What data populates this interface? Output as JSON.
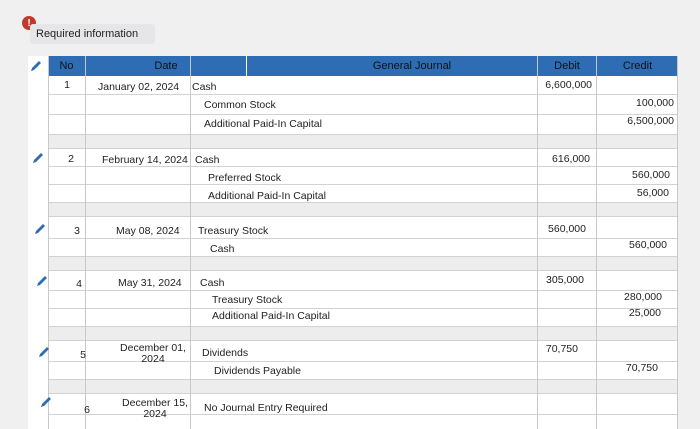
{
  "header": {
    "alert_icon": "!",
    "title": "Required information"
  },
  "columns": {
    "no": "No",
    "date": "Date",
    "journal": "General Journal",
    "debit": "Debit",
    "credit": "Credit"
  },
  "entries": [
    {
      "no": "1",
      "date": "January 02, 2024",
      "lines": [
        {
          "account": "Cash",
          "debit": "6,600,000",
          "credit": ""
        },
        {
          "account": "Common Stock",
          "debit": "",
          "credit": "100,000"
        },
        {
          "account": "Additional Paid-In Capital",
          "debit": "",
          "credit": "6,500,000"
        }
      ]
    },
    {
      "no": "2",
      "date": "February 14, 2024",
      "lines": [
        {
          "account": "Cash",
          "debit": "616,000",
          "credit": ""
        },
        {
          "account": "Preferred Stock",
          "debit": "",
          "credit": "560,000"
        },
        {
          "account": "Additional Paid-In Capital",
          "debit": "",
          "credit": "56,000"
        }
      ]
    },
    {
      "no": "3",
      "date": "May 08, 2024",
      "lines": [
        {
          "account": "Treasury Stock",
          "debit": "560,000",
          "credit": ""
        },
        {
          "account": "Cash",
          "debit": "",
          "credit": "560,000"
        }
      ]
    },
    {
      "no": "4",
      "date": "May 31, 2024",
      "lines": [
        {
          "account": "Cash",
          "debit": "305,000",
          "credit": ""
        },
        {
          "account": "Treasury Stock",
          "debit": "",
          "credit": "280,000"
        },
        {
          "account": "Additional Paid-In Capital",
          "debit": "",
          "credit": "25,000"
        }
      ]
    },
    {
      "no": "5",
      "date": "December 01, 2024",
      "lines": [
        {
          "account": "Dividends",
          "debit": "70,750",
          "credit": ""
        },
        {
          "account": "Dividends Payable",
          "debit": "",
          "credit": "70,750"
        }
      ]
    },
    {
      "no": "6",
      "date": "December 15, 2024",
      "lines": [
        {
          "account": "No Journal Entry Required",
          "debit": "",
          "credit": ""
        }
      ]
    }
  ]
}
